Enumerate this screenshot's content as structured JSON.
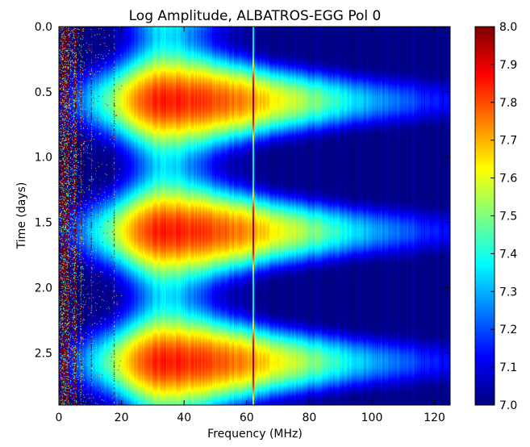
{
  "chart_data": {
    "type": "heatmap",
    "title": "Log Amplitude, ALBATROS-EGG Pol 0",
    "xlabel": "Frequency (MHz)",
    "ylabel": "Time (days)",
    "xlim": [
      0,
      125
    ],
    "ylim": [
      2.9,
      0.0
    ],
    "x_ticks": [
      0,
      20,
      40,
      60,
      80,
      100,
      120
    ],
    "x_tick_labels": [
      "0",
      "20",
      "40",
      "60",
      "80",
      "100",
      "120"
    ],
    "y_ticks": [
      0.0,
      0.5,
      1.0,
      1.5,
      2.0,
      2.5
    ],
    "y_tick_labels": [
      "0.0",
      "0.5",
      "1.0",
      "1.5",
      "2.0",
      "2.5"
    ],
    "colorbar": {
      "range": [
        7.0,
        8.0
      ],
      "ticks": [
        7.0,
        7.1,
        7.2,
        7.3,
        7.4,
        7.5,
        7.6,
        7.7,
        7.8,
        7.9,
        8.0
      ],
      "tick_labels": [
        "7.0",
        "7.1",
        "7.2",
        "7.3",
        "7.4",
        "7.5",
        "7.6",
        "7.7",
        "7.8",
        "7.9",
        "8.0"
      ],
      "colormap": "jet"
    },
    "peaks": [
      {
        "time_days": 0.57,
        "freq_mhz": 34,
        "log_amplitude": 7.85
      },
      {
        "time_days": 1.58,
        "freq_mhz": 34,
        "log_amplitude": 7.85
      },
      {
        "time_days": 2.6,
        "freq_mhz": 34,
        "log_amplitude": 7.85
      }
    ],
    "troughs_time_days": [
      0.07,
      1.07,
      2.08
    ],
    "background_log_amplitude": 7.0,
    "rfi_band_mhz": [
      0,
      20
    ],
    "narrowband_line_mhz": 62
  }
}
